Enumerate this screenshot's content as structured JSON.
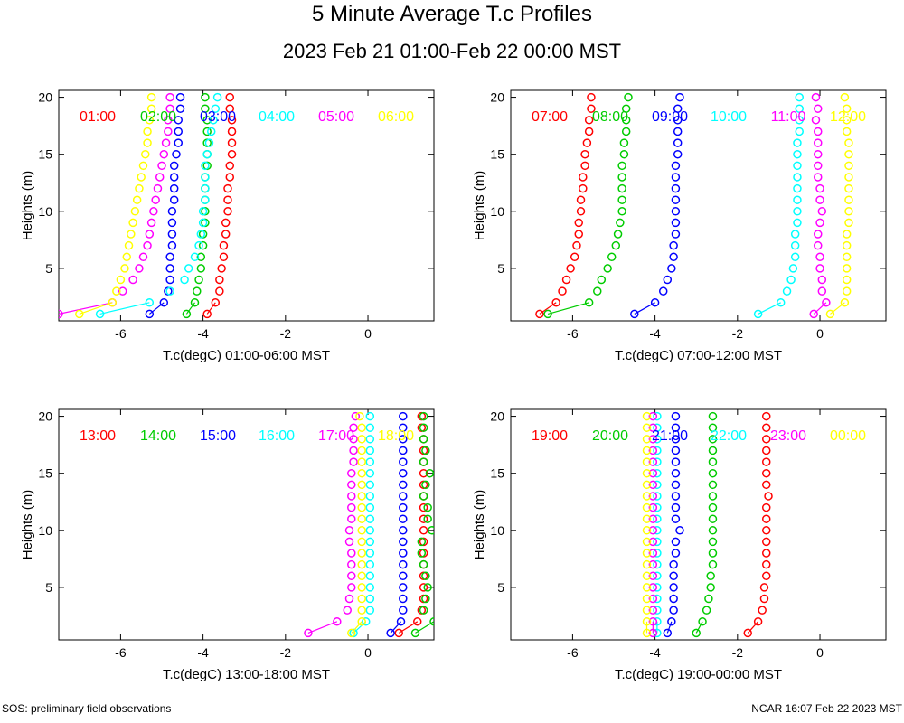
{
  "title": "5 Minute Average T.c Profiles",
  "subtitle": "2023 Feb 21 01:00-Feb 22 00:00 MST",
  "footer_left": "SOS: preliminary field observations",
  "footer_right": "NCAR 16:07 Feb 22 2023 MST",
  "colors": [
    "#ff0000",
    "#00cc00",
    "#0000ff",
    "#00ffff",
    "#ff00ff",
    "#ffff00"
  ],
  "chart_data": [
    {
      "type": "scatter",
      "xlabel": "T.c(degC) 01:00-06:00 MST",
      "ylabel": "Heights (m)",
      "xlim": [
        -7.5,
        1.6
      ],
      "ylim": [
        0.4,
        20.6
      ],
      "xticks": [
        -6,
        -4,
        -2,
        0
      ],
      "yticks": [
        5,
        10,
        15,
        20
      ],
      "heights": [
        1,
        2,
        3,
        4,
        5,
        6,
        7,
        8,
        9,
        10,
        11,
        12,
        13,
        14,
        15,
        16,
        17,
        18,
        19,
        20
      ],
      "series": [
        {
          "name": "01:00",
          "values": [
            -3.9,
            -3.7,
            -3.6,
            -3.6,
            -3.55,
            -3.5,
            -3.5,
            -3.45,
            -3.45,
            -3.4,
            -3.4,
            -3.4,
            -3.35,
            -3.35,
            -3.3,
            -3.3,
            -3.3,
            -3.3,
            -3.35,
            -3.35
          ]
        },
        {
          "name": "02:00",
          "values": [
            -4.4,
            -4.2,
            -4.15,
            -4.1,
            -4.05,
            -4.05,
            -4.0,
            -4.0,
            -3.95,
            -3.95,
            -3.95,
            -3.95,
            -3.95,
            -3.9,
            -3.9,
            -3.9,
            -3.9,
            -3.9,
            -3.95,
            -3.95
          ]
        },
        {
          "name": "03:00",
          "values": [
            -5.3,
            -4.95,
            -4.85,
            -4.8,
            -4.8,
            -4.8,
            -4.75,
            -4.75,
            -4.75,
            -4.75,
            -4.7,
            -4.7,
            -4.7,
            -4.7,
            -4.65,
            -4.6,
            -4.6,
            -4.6,
            -4.55,
            -4.55
          ]
        },
        {
          "name": "04:00",
          "values": [
            -6.5,
            -5.3,
            -4.8,
            -4.45,
            -4.35,
            -4.2,
            -4.1,
            -4.05,
            -4.0,
            -4.0,
            -3.95,
            -3.95,
            -3.95,
            -3.95,
            -3.9,
            -3.85,
            -3.8,
            -3.75,
            -3.7,
            -3.65
          ]
        },
        {
          "name": "05:00",
          "values": [
            -7.5,
            -6.2,
            -5.95,
            -5.7,
            -5.55,
            -5.45,
            -5.35,
            -5.3,
            -5.25,
            -5.2,
            -5.15,
            -5.1,
            -5.05,
            -5.0,
            -4.95,
            -4.9,
            -4.85,
            -4.85,
            -4.8,
            -4.8
          ]
        },
        {
          "name": "06:00",
          "values": [
            -7.0,
            -6.2,
            -6.1,
            -6.0,
            -5.9,
            -5.85,
            -5.8,
            -5.75,
            -5.7,
            -5.65,
            -5.6,
            -5.55,
            -5.5,
            -5.45,
            -5.4,
            -5.35,
            -5.35,
            -5.3,
            -5.25,
            -5.25
          ]
        }
      ]
    },
    {
      "type": "scatter",
      "xlabel": "T.c(degC) 07:00-12:00 MST",
      "ylabel": "Heights (m)",
      "xlim": [
        -7.5,
        1.6
      ],
      "ylim": [
        0.4,
        20.6
      ],
      "xticks": [
        -6,
        -4,
        -2,
        0
      ],
      "yticks": [
        5,
        10,
        15,
        20
      ],
      "heights": [
        1,
        2,
        3,
        4,
        5,
        6,
        7,
        8,
        9,
        10,
        11,
        12,
        13,
        14,
        15,
        16,
        17,
        18,
        19,
        20
      ],
      "series": [
        {
          "name": "07:00",
          "values": [
            -6.8,
            -6.4,
            -6.25,
            -6.15,
            -6.05,
            -5.95,
            -5.9,
            -5.85,
            -5.85,
            -5.8,
            -5.8,
            -5.75,
            -5.75,
            -5.7,
            -5.7,
            -5.65,
            -5.6,
            -5.6,
            -5.55,
            -5.55
          ]
        },
        {
          "name": "08:00",
          "values": [
            -6.6,
            -5.6,
            -5.4,
            -5.3,
            -5.15,
            -5.05,
            -4.95,
            -4.9,
            -4.85,
            -4.8,
            -4.8,
            -4.8,
            -4.8,
            -4.8,
            -4.75,
            -4.75,
            -4.7,
            -4.7,
            -4.7,
            -4.65
          ]
        },
        {
          "name": "09:00",
          "values": [
            -4.5,
            -4.0,
            -3.8,
            -3.7,
            -3.6,
            -3.55,
            -3.55,
            -3.5,
            -3.5,
            -3.5,
            -3.5,
            -3.5,
            -3.5,
            -3.5,
            -3.45,
            -3.45,
            -3.45,
            -3.45,
            -3.45,
            -3.4
          ]
        },
        {
          "name": "10:00",
          "values": [
            -1.5,
            -0.95,
            -0.8,
            -0.7,
            -0.65,
            -0.6,
            -0.6,
            -0.6,
            -0.55,
            -0.55,
            -0.55,
            -0.55,
            -0.55,
            -0.55,
            -0.55,
            -0.55,
            -0.5,
            -0.5,
            -0.5,
            -0.5
          ]
        },
        {
          "name": "11:00",
          "values": [
            -0.15,
            0.15,
            0.05,
            0.05,
            0.0,
            0.0,
            -0.05,
            -0.05,
            0.0,
            0.05,
            0.0,
            0.0,
            -0.05,
            -0.05,
            -0.05,
            -0.05,
            -0.05,
            -0.1,
            -0.05,
            -0.1
          ]
        },
        {
          "name": "12:00",
          "values": [
            0.25,
            0.6,
            0.65,
            0.65,
            0.65,
            0.65,
            0.65,
            0.65,
            0.7,
            0.7,
            0.7,
            0.7,
            0.7,
            0.7,
            0.7,
            0.7,
            0.65,
            0.65,
            0.65,
            0.6
          ]
        }
      ]
    },
    {
      "type": "scatter",
      "xlabel": "T.c(degC) 13:00-18:00 MST",
      "ylabel": "Heights (m)",
      "xlim": [
        -7.5,
        1.6
      ],
      "ylim": [
        0.4,
        20.6
      ],
      "xticks": [
        -6,
        -4,
        -2,
        0
      ],
      "yticks": [
        5,
        10,
        15,
        20
      ],
      "heights": [
        1,
        2,
        3,
        4,
        5,
        6,
        7,
        8,
        9,
        10,
        11,
        12,
        13,
        14,
        15,
        16,
        17,
        18,
        19,
        20
      ],
      "series": [
        {
          "name": "13:00",
          "values": [
            0.75,
            1.2,
            1.3,
            1.35,
            1.35,
            1.35,
            1.35,
            1.35,
            1.35,
            1.35,
            1.35,
            1.35,
            1.35,
            1.35,
            1.35,
            1.35,
            1.35,
            1.35,
            1.3,
            1.3
          ]
        },
        {
          "name": "14:00",
          "values": [
            1.15,
            1.6,
            1.35,
            1.4,
            1.45,
            1.4,
            1.35,
            1.3,
            1.3,
            1.55,
            1.45,
            1.45,
            1.35,
            1.4,
            1.5,
            1.35,
            1.4,
            1.35,
            1.35,
            1.35
          ]
        },
        {
          "name": "15:00",
          "values": [
            0.55,
            0.8,
            0.85,
            0.85,
            0.85,
            0.85,
            0.85,
            0.85,
            0.85,
            0.85,
            0.85,
            0.85,
            0.85,
            0.85,
            0.85,
            0.85,
            0.85,
            0.85,
            0.85,
            0.85
          ]
        },
        {
          "name": "16:00",
          "values": [
            -0.35,
            -0.05,
            0.05,
            0.05,
            0.05,
            0.05,
            0.05,
            0.05,
            0.05,
            0.05,
            0.05,
            0.05,
            0.05,
            0.05,
            0.05,
            0.05,
            0.05,
            0.05,
            0.05,
            0.05
          ]
        },
        {
          "name": "17:00",
          "values": [
            -1.45,
            -0.75,
            -0.5,
            -0.45,
            -0.4,
            -0.4,
            -0.4,
            -0.4,
            -0.45,
            -0.45,
            -0.4,
            -0.4,
            -0.4,
            -0.4,
            -0.4,
            -0.35,
            -0.35,
            -0.35,
            -0.35,
            -0.3
          ]
        },
        {
          "name": "18:00",
          "values": [
            -0.4,
            -0.15,
            -0.15,
            -0.15,
            -0.15,
            -0.15,
            -0.15,
            -0.15,
            -0.15,
            -0.15,
            -0.15,
            -0.15,
            -0.15,
            -0.15,
            -0.15,
            -0.15,
            -0.15,
            -0.15,
            -0.15,
            -0.2
          ]
        }
      ]
    },
    {
      "type": "scatter",
      "xlabel": "T.c(degC) 19:00-00:00 MST",
      "ylabel": "Heights (m)",
      "xlim": [
        -7.5,
        1.6
      ],
      "ylim": [
        0.4,
        20.6
      ],
      "xticks": [
        -6,
        -4,
        -2,
        0
      ],
      "yticks": [
        5,
        10,
        15,
        20
      ],
      "heights": [
        1,
        2,
        3,
        4,
        5,
        6,
        7,
        8,
        9,
        10,
        11,
        12,
        13,
        14,
        15,
        16,
        17,
        18,
        19,
        20
      ],
      "series": [
        {
          "name": "19:00",
          "values": [
            -1.75,
            -1.5,
            -1.4,
            -1.35,
            -1.35,
            -1.3,
            -1.3,
            -1.3,
            -1.3,
            -1.3,
            -1.3,
            -1.3,
            -1.25,
            -1.3,
            -1.3,
            -1.3,
            -1.3,
            -1.3,
            -1.3,
            -1.3
          ]
        },
        {
          "name": "20:00",
          "values": [
            -3.0,
            -2.85,
            -2.75,
            -2.7,
            -2.65,
            -2.65,
            -2.6,
            -2.6,
            -2.6,
            -2.6,
            -2.6,
            -2.6,
            -2.6,
            -2.6,
            -2.6,
            -2.6,
            -2.6,
            -2.6,
            -2.6,
            -2.6
          ]
        },
        {
          "name": "21:00",
          "values": [
            -3.7,
            -3.6,
            -3.55,
            -3.55,
            -3.55,
            -3.55,
            -3.55,
            -3.5,
            -3.5,
            -3.4,
            -3.5,
            -3.5,
            -3.5,
            -3.5,
            -3.5,
            -3.5,
            -3.5,
            -3.5,
            -3.5,
            -3.5
          ]
        },
        {
          "name": "22:00",
          "values": [
            -3.95,
            -3.95,
            -3.95,
            -3.95,
            -3.95,
            -3.95,
            -3.95,
            -3.95,
            -3.95,
            -3.95,
            -3.95,
            -3.95,
            -3.95,
            -3.95,
            -3.95,
            -3.95,
            -3.95,
            -3.95,
            -3.95,
            -3.95
          ]
        },
        {
          "name": "23:00",
          "values": [
            -4.05,
            -4.05,
            -4.05,
            -4.05,
            -4.05,
            -4.05,
            -4.05,
            -4.05,
            -4.05,
            -4.05,
            -4.05,
            -4.05,
            -4.05,
            -4.05,
            -4.05,
            -4.05,
            -4.05,
            -4.05,
            -4.05,
            -4.05
          ]
        },
        {
          "name": "00:00",
          "values": [
            -4.2,
            -4.2,
            -4.2,
            -4.2,
            -4.2,
            -4.2,
            -4.2,
            -4.2,
            -4.2,
            -4.2,
            -4.2,
            -4.2,
            -4.2,
            -4.2,
            -4.2,
            -4.2,
            -4.2,
            -4.2,
            -4.2,
            -4.2
          ]
        }
      ]
    }
  ]
}
